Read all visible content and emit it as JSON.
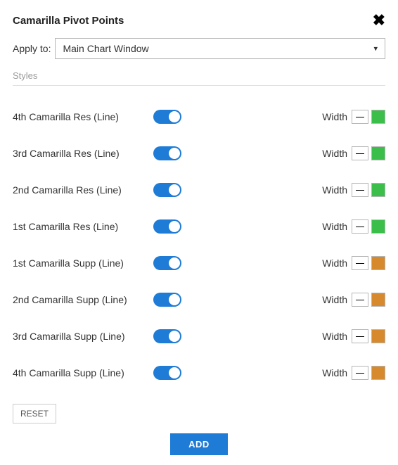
{
  "header": {
    "title": "Camarilla Pivot Points"
  },
  "apply": {
    "label": "Apply to:",
    "selected": "Main Chart Window"
  },
  "section": {
    "styles_label": "Styles"
  },
  "width_label": "Width",
  "rows": [
    {
      "label": "4th Camarilla Res (Line)",
      "on": true,
      "color": "#3bbf4a"
    },
    {
      "label": "3rd Camarilla Res (Line)",
      "on": true,
      "color": "#3bbf4a"
    },
    {
      "label": "2nd Camarilla Res (Line)",
      "on": true,
      "color": "#3bbf4a"
    },
    {
      "label": "1st Camarilla Res (Line)",
      "on": true,
      "color": "#3bbf4a"
    },
    {
      "label": "1st Camarilla Supp (Line)",
      "on": true,
      "color": "#d68a2d"
    },
    {
      "label": "2nd Camarilla Supp (Line)",
      "on": true,
      "color": "#d68a2d"
    },
    {
      "label": "3rd Camarilla Supp (Line)",
      "on": true,
      "color": "#d68a2d"
    },
    {
      "label": "4th Camarilla Supp (Line)",
      "on": true,
      "color": "#d68a2d"
    }
  ],
  "buttons": {
    "reset": "RESET",
    "add": "ADD"
  },
  "colors": {
    "accent": "#1e7bd6",
    "border": "#b5b5b5",
    "muted_text": "#9a9a9a",
    "line_sep": "#e0e0e0"
  }
}
